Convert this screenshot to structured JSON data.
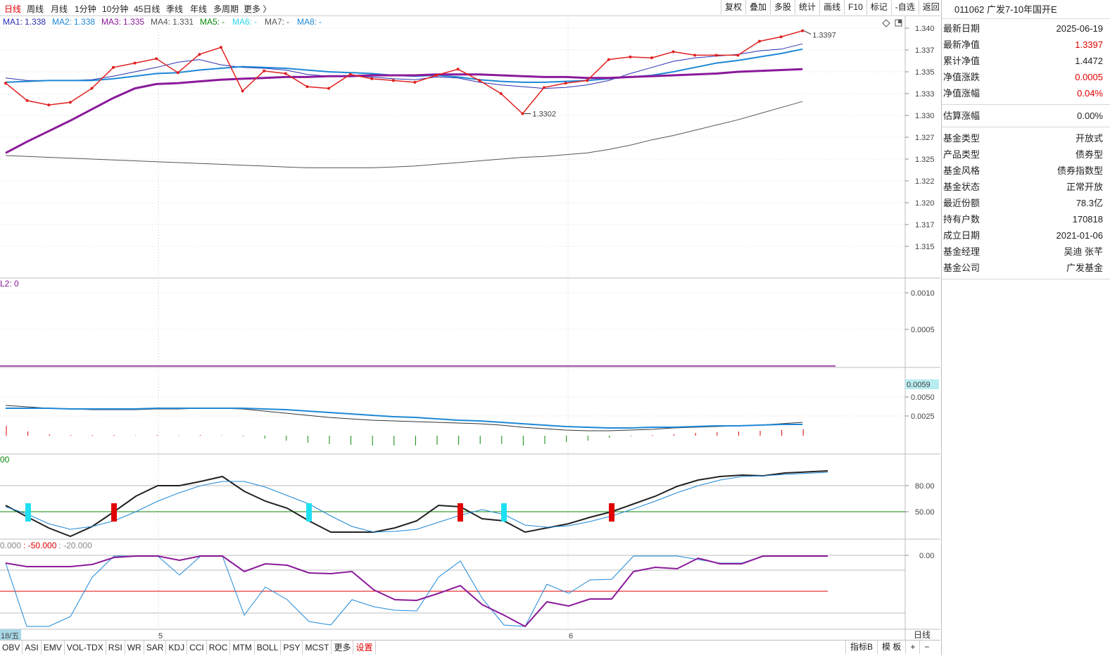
{
  "toolbar": {
    "period_tabs": [
      "日线",
      "周线",
      "月线",
      "1分钟",
      "10分钟",
      "45日线",
      "季线",
      "年线",
      "多周期",
      "更多 〉"
    ],
    "active_period": "日线",
    "right_buttons": [
      "复权",
      "叠加",
      "多股",
      "统计",
      "画线",
      "F10",
      "标记",
      "-自选",
      "返回"
    ]
  },
  "icons": {
    "diamond": "diamond-icon",
    "window": "window-icon"
  },
  "legend": [
    {
      "label": "MA1:",
      "value": "1.338",
      "color": "#2a2fb0"
    },
    {
      "label": "MA2:",
      "value": "1.338",
      "color": "#1e88d6"
    },
    {
      "label": "MA3:",
      "value": "1.335",
      "color": "#8b1a9a"
    },
    {
      "label": "MA4:",
      "value": "1.331",
      "color": "#555555"
    },
    {
      "label": "MA5:",
      "value": "-",
      "color": "#0a8a0a"
    },
    {
      "label": "MA6:",
      "value": "-",
      "color": "#2ad6e8"
    },
    {
      "label": "MA7:",
      "value": "-",
      "color": "#555555"
    },
    {
      "label": "MA8:",
      "value": "-",
      "color": "#1e88d6"
    }
  ],
  "annotations": {
    "high": "1.3397",
    "low": "1.3302"
  },
  "date_labels": [
    "18/五",
    "5",
    "6"
  ],
  "panel2_label": "L2: 0",
  "panel4_label": "00",
  "panel5_label": [
    "0.000",
    ": -50.000",
    ": -20.000"
  ],
  "period_label": "日线",
  "colors": {
    "price": "#e02020",
    "ma1": "#2a2fb0",
    "ma2": "#1e88d6",
    "ma3": "#8b1a9a",
    "ma4": "#555555",
    "red": "#e00000",
    "cyan": "#1fe0f0",
    "green": "#0a8a0a"
  },
  "chart_data": [
    {
      "type": "line",
      "y_ticks": [
        "1.340",
        "1.337",
        "1.335",
        "1.333",
        "1.330",
        "1.327",
        "1.325",
        "1.322",
        "1.320",
        "1.317",
        "1.315"
      ],
      "ylim": [
        1.3135,
        1.3415
      ],
      "series": [
        {
          "name": "MA1",
          "values": [
            1.3343,
            1.334,
            1.334,
            1.334,
            1.3341,
            1.3345,
            1.335,
            1.3355,
            1.3361,
            1.3364,
            1.3358,
            1.3355,
            1.3354,
            1.3352,
            1.3347,
            1.3345,
            1.3346,
            1.3344,
            1.3342,
            1.3341,
            1.3344,
            1.3343,
            1.3338,
            1.3335,
            1.3333,
            1.3331,
            1.3332,
            1.3335,
            1.334,
            1.3348,
            1.3355,
            1.3362,
            1.3366,
            1.3368,
            1.337,
            1.3374,
            1.3376,
            1.3382
          ]
        },
        {
          "name": "MA2",
          "values": [
            1.3338,
            1.3339,
            1.334,
            1.334,
            1.334,
            1.3342,
            1.3345,
            1.3348,
            1.3349,
            1.3352,
            1.3354,
            1.3356,
            1.3355,
            1.3354,
            1.3352,
            1.335,
            1.3349,
            1.3348,
            1.3346,
            1.3345,
            1.3346,
            1.3344,
            1.3341,
            1.3339,
            1.3338,
            1.3338,
            1.3339,
            1.334,
            1.3342,
            1.3344,
            1.3346,
            1.335,
            1.3355,
            1.336,
            1.3363,
            1.3367,
            1.3371,
            1.3376
          ]
        },
        {
          "name": "MA3",
          "values": [
            1.3257,
            1.327,
            1.3282,
            1.3294,
            1.3307,
            1.332,
            1.3331,
            1.3336,
            1.3337,
            1.3339,
            1.3341,
            1.3342,
            1.3343,
            1.3344,
            1.3344,
            1.3345,
            1.3345,
            1.3346,
            1.3346,
            1.3346,
            1.3347,
            1.3347,
            1.3347,
            1.3346,
            1.3345,
            1.3344,
            1.3344,
            1.3343,
            1.3343,
            1.3344,
            1.3345,
            1.3346,
            1.3347,
            1.3348,
            1.335,
            1.3351,
            1.3352,
            1.3353
          ]
        }
      ]
    },
    {
      "type": "line",
      "y_ticks": [
        "0.0010",
        "0.0005"
      ],
      "ylim": [
        0,
        0.0011
      ],
      "series": [
        {
          "name": "L2",
          "values": [
            0,
            0
          ]
        }
      ]
    },
    {
      "type": "line",
      "y_ticks": [
        "0.0059",
        "0.0050",
        "0.0025"
      ],
      "series": []
    },
    {
      "type": "line",
      "y_ticks": [
        "80.00",
        "50.00"
      ],
      "series": []
    },
    {
      "type": "line",
      "y_ticks": [
        "0.00"
      ],
      "series": []
    }
  ],
  "fund": {
    "header": "011062 广发7-10年国开E",
    "rows_group1": [
      {
        "label": "最新日期",
        "value": "2025-06-19",
        "red": false
      },
      {
        "label": "最新净值",
        "value": "1.3397",
        "red": true
      },
      {
        "label": "累计净值",
        "value": "1.4472",
        "red": false
      },
      {
        "label": "净值涨跌",
        "value": "0.0005",
        "red": true
      },
      {
        "label": "净值涨幅",
        "value": "0.04%",
        "red": true
      }
    ],
    "rows_group2": [
      {
        "label": "估算涨幅",
        "value": "0.00%",
        "red": false
      }
    ],
    "rows_group3": [
      {
        "label": "基金类型",
        "value": "开放式",
        "red": false
      },
      {
        "label": "产品类型",
        "value": "债券型",
        "red": false
      },
      {
        "label": "基金风格",
        "value": "债券指数型",
        "red": false
      },
      {
        "label": "基金状态",
        "value": "正常开放",
        "red": false
      },
      {
        "label": "最近份额",
        "value": "78.3亿",
        "red": false
      },
      {
        "label": "持有户数",
        "value": "170818",
        "red": false
      },
      {
        "label": "成立日期",
        "value": "2021-01-06",
        "red": false
      },
      {
        "label": "基金经理",
        "value": "吴迪 张芊",
        "red": false
      },
      {
        "label": "基金公司",
        "value": "广发基金",
        "red": false
      }
    ]
  },
  "indicator_tabs": [
    "OBV",
    "ASI",
    "EMV",
    "VOL-TDX",
    "RSI",
    "WR",
    "SAR",
    "KDJ",
    "CCI",
    "ROC",
    "MTM",
    "BOLL",
    "PSY",
    "MCST",
    "更多",
    "设置"
  ],
  "bottom_right_buttons": [
    "指标B",
    "模 板",
    "+",
    "−"
  ]
}
